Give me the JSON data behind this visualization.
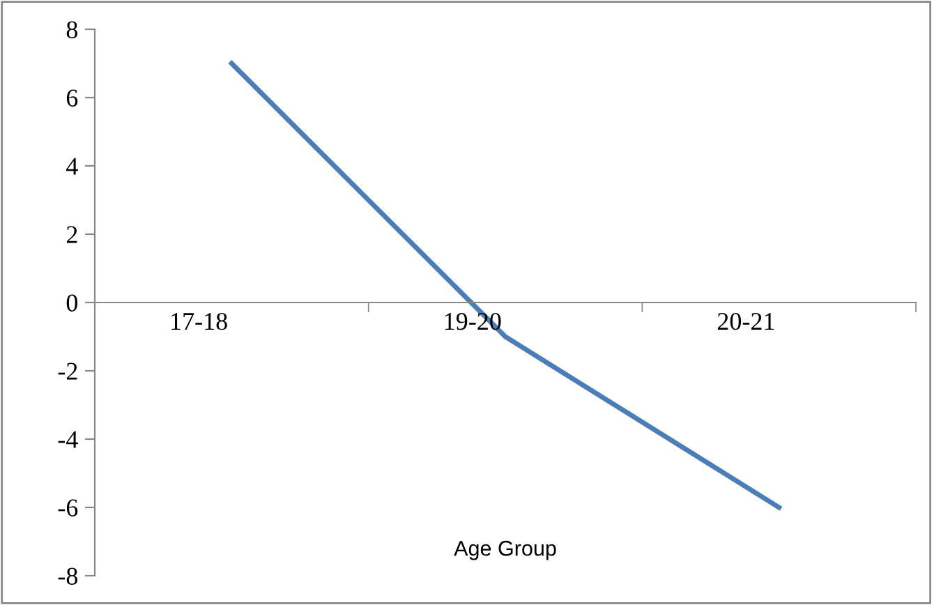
{
  "chart_data": {
    "type": "line",
    "xlabel": "Age Group",
    "categories": [
      "17-18",
      "19-20",
      "20-21"
    ],
    "series": [
      {
        "color": "#4a7ebb",
        "values": [
          7,
          -1,
          -6
        ]
      }
    ],
    "ylim": [
      -8,
      8
    ],
    "yticks": [
      -8,
      -6,
      -4,
      -2,
      0,
      2,
      4,
      6,
      8
    ],
    "grid": false,
    "legend": false,
    "marker": "none",
    "line_style": "solid"
  }
}
